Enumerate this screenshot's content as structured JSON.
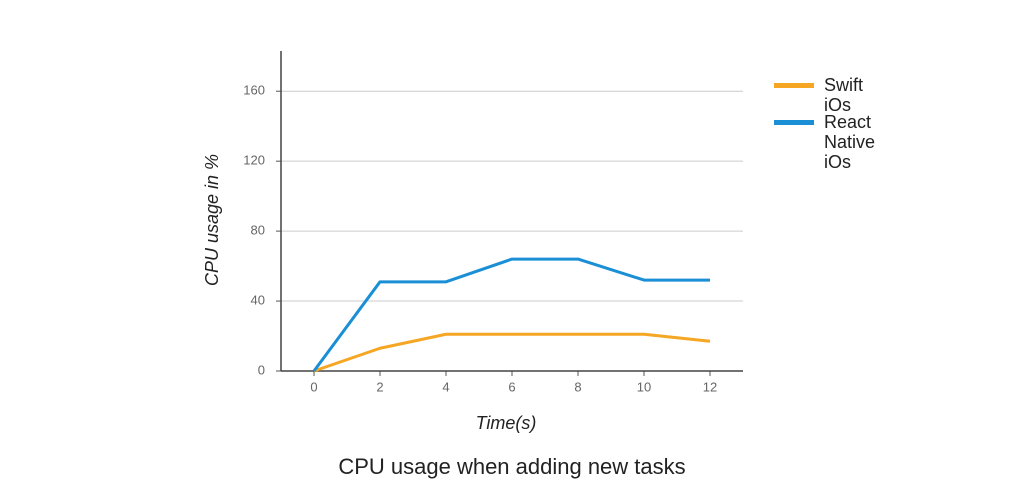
{
  "chart_data": {
    "type": "line",
    "title": "CPU usage when adding new tasks",
    "x_label": "Time(s)",
    "y_label": "CPU usage in %",
    "x": [
      0,
      2,
      4,
      6,
      8,
      10,
      12
    ],
    "series": [
      {
        "name": "Swift iOs",
        "color": "#f5a623",
        "values": [
          0,
          13,
          21,
          21,
          21,
          21,
          17
        ]
      },
      {
        "name": "React Native iOs",
        "color": "#1a8fd6",
        "values": [
          0,
          51,
          51,
          64,
          64,
          52,
          52
        ]
      }
    ],
    "xlim": [
      -1,
      13
    ],
    "xticks": [
      0,
      2,
      4,
      6,
      8,
      10,
      12
    ],
    "ylim": [
      0,
      183
    ],
    "yticks": [
      0,
      40,
      80,
      120,
      160
    ],
    "grid": true
  }
}
